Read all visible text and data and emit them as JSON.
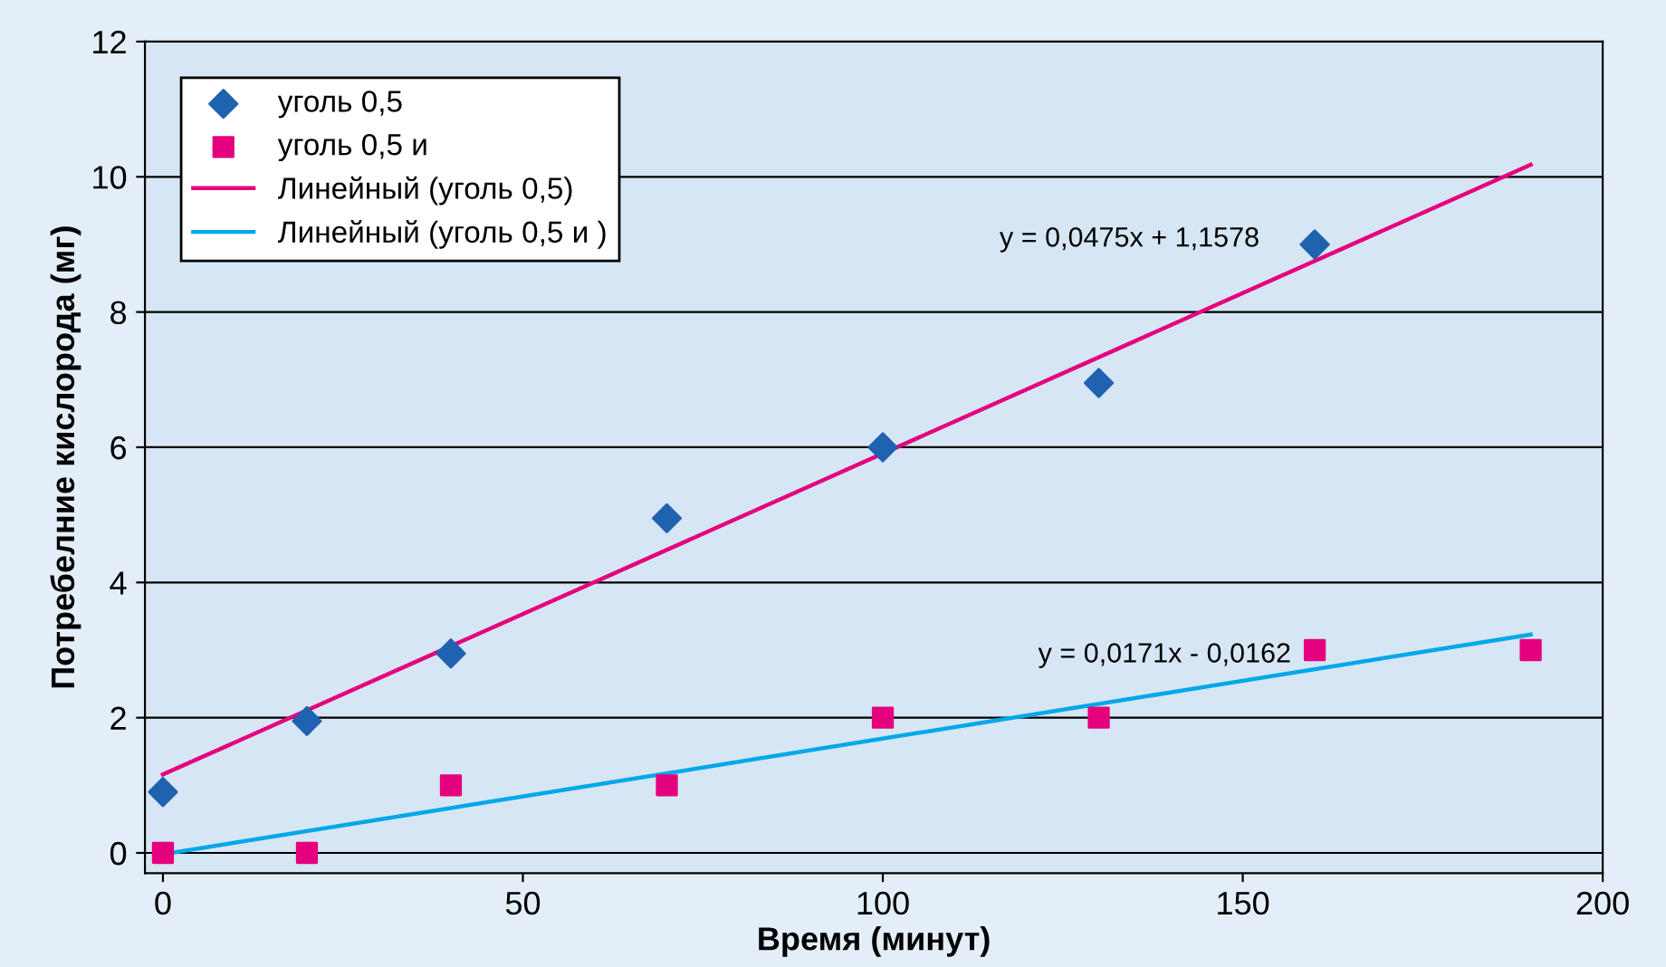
{
  "chart_data": {
    "type": "scatter",
    "xlabel": "Время (минут)",
    "ylabel": "Потребелние кислорода (мг)",
    "xlim": [
      -2.5,
      200
    ],
    "ylim": [
      -0.3,
      12
    ],
    "xticks": [
      0,
      50,
      100,
      150,
      200
    ],
    "yticks": [
      0,
      2,
      4,
      6,
      8,
      10,
      12
    ],
    "grid": "y",
    "legend": "top left",
    "series": [
      {
        "name": "уголь 0,5",
        "marker": "diamond",
        "color": "#1f62b0",
        "x": [
          0,
          20,
          40,
          70,
          100,
          130,
          160
        ],
        "values": [
          0.9,
          1.95,
          2.95,
          4.95,
          6,
          6.95,
          9
        ]
      },
      {
        "name": "уголь 0,5 и",
        "marker": "square",
        "color": "#e5007d",
        "x": [
          0,
          20,
          40,
          70,
          100,
          130,
          160,
          190
        ],
        "values": [
          0,
          0,
          1,
          1,
          2,
          2,
          3,
          3
        ]
      },
      {
        "name": "Линейный (уголь 0,5)",
        "type": "line",
        "marker": "none",
        "color": "#e5007d",
        "x": [
          0,
          190
        ],
        "values": [
          1.16,
          10.18
        ]
      },
      {
        "name": "Линейный (уголь 0,5 и )",
        "type": "line",
        "marker": "none",
        "color": "#00a8e8",
        "x": [
          0,
          190
        ],
        "values": [
          -0.02,
          3.23
        ]
      }
    ],
    "annotations": [
      "y = 0,0475x + 1,1578",
      "y = 0,0171x - 0,0162"
    ]
  }
}
